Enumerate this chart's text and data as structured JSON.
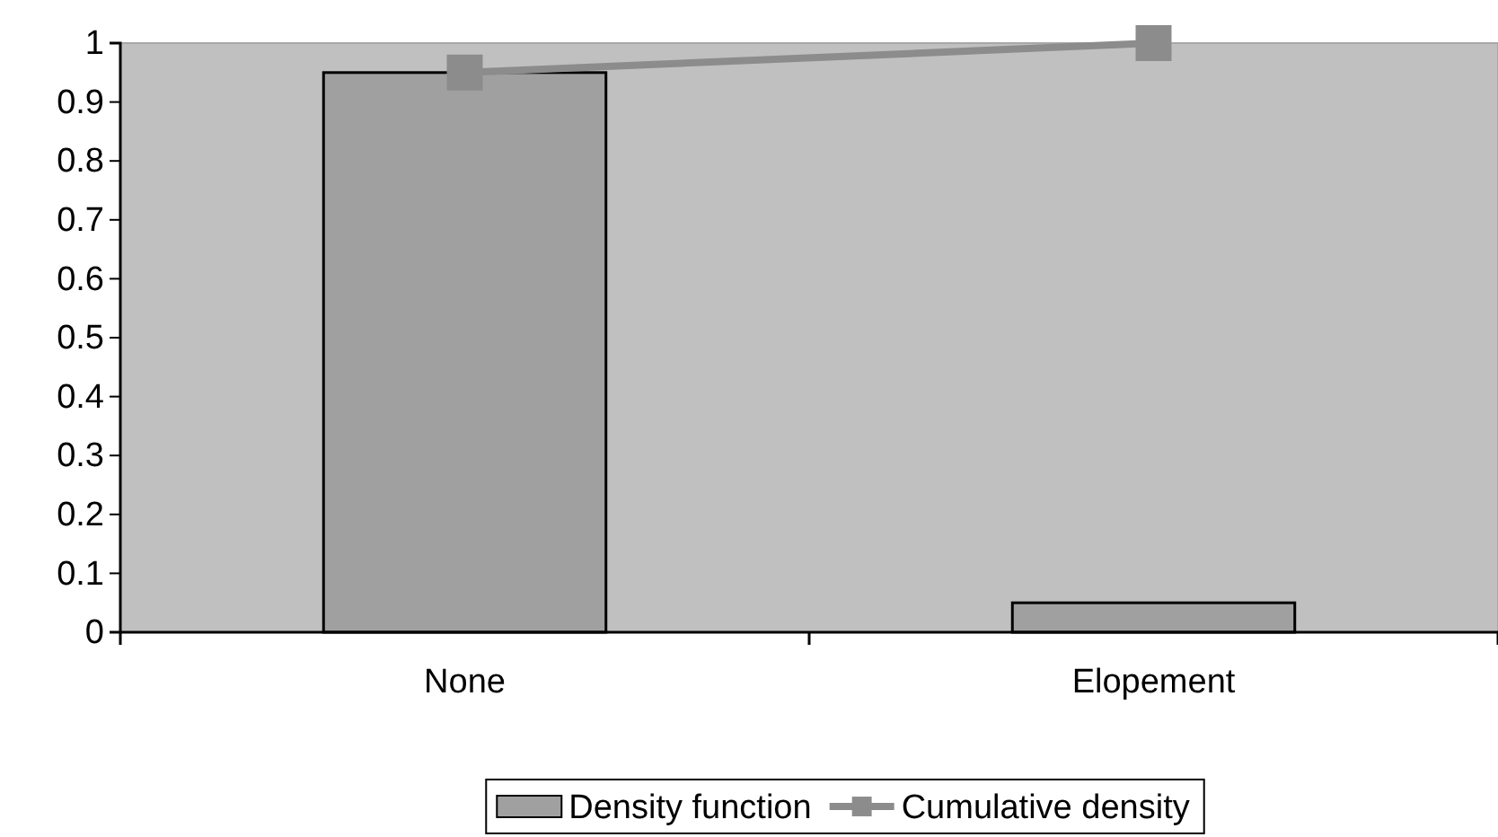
{
  "chart_data": {
    "type": "bar",
    "categories": [
      "None",
      "Elopement"
    ],
    "series": [
      {
        "name": "Density function",
        "color": "#a0a0a0",
        "values": [
          0.95,
          0.05
        ]
      },
      {
        "name": "Cumulative density",
        "type": "line",
        "color": "#8c8c8c",
        "values": [
          0.95,
          1.0
        ]
      }
    ],
    "ylim": [
      0,
      1
    ],
    "yticks": [
      0,
      0.1,
      0.2,
      0.3,
      0.4,
      0.5,
      0.6,
      0.7,
      0.8,
      0.9,
      1
    ],
    "grid": false,
    "legend": "bottom",
    "marker": "square"
  }
}
